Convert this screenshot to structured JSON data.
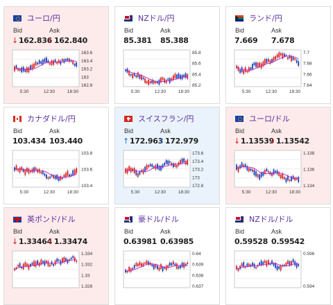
{
  "labels": {
    "bid": "Bid",
    "ask": "Ask"
  },
  "cards": [
    {
      "pair": "ユーロ/円",
      "flag": "eu",
      "state": "down",
      "bid": "162.836",
      "ask": "162.840",
      "bid_arrow": "↓",
      "ask_arrow": "↓",
      "y_ticks": [
        "163.6",
        "163.4",
        "163.2",
        "163",
        "162.8"
      ],
      "x_ticks": [
        "5:30",
        "12:30",
        "18:30"
      ]
    },
    {
      "pair": "NZドル/円",
      "flag": "nz",
      "state": "flat",
      "bid": "85.381",
      "ask": "85.388",
      "bid_arrow": "",
      "ask_arrow": "",
      "y_ticks": [
        "85.8",
        "85.6",
        "85.4",
        "85.2"
      ],
      "x_ticks": [
        "5:30",
        "12:30",
        "18:30"
      ]
    },
    {
      "pair": "ランド/円",
      "flag": "za",
      "state": "flat",
      "bid": "7.669",
      "ask": "7.678",
      "bid_arrow": "",
      "ask_arrow": "",
      "y_ticks": [
        "7.7",
        "7.68",
        "7.66",
        "7.64"
      ],
      "x_ticks": [
        "5:30",
        "12:30",
        "18:30"
      ]
    },
    {
      "pair": "カナダドル/円",
      "flag": "ca",
      "state": "flat",
      "bid": "103.434",
      "ask": "103.440",
      "bid_arrow": "",
      "ask_arrow": "",
      "y_ticks": [
        "103.8",
        "103.6",
        "103.4"
      ],
      "x_ticks": [
        "5:30",
        "12:30",
        "18:30"
      ]
    },
    {
      "pair": "スイスフラン/円",
      "flag": "ch",
      "state": "up",
      "bid": "172.963",
      "ask": "172.979",
      "bid_arrow": "↑",
      "ask_arrow": "↑",
      "y_ticks": [
        "173.6",
        "173.4",
        "173.2",
        "173",
        "172.8"
      ],
      "x_ticks": [
        "5:30",
        "12:30",
        "18:30"
      ]
    },
    {
      "pair": "ユーロ/ドル",
      "flag": "eu",
      "state": "down",
      "bid": "1.13539",
      "ask": "1.13542",
      "bid_arrow": "↓",
      "ask_arrow": "↓",
      "y_ticks": [
        "1.138",
        "1.136",
        "1.134"
      ],
      "x_ticks": [
        "5:30",
        "12:30",
        "18:30"
      ]
    },
    {
      "pair": "英ポンド/ドル",
      "flag": "gb",
      "state": "down",
      "bid": "1.33464",
      "ask": "1.33474",
      "bid_arrow": "↓",
      "ask_arrow": "↓",
      "y_ticks": [
        "1.334",
        "1.332",
        "1.33",
        "1.328"
      ],
      "x_ticks": []
    },
    {
      "pair": "豪ドル/ドル",
      "flag": "au",
      "state": "flat",
      "bid": "0.63981",
      "ask": "0.63985",
      "bid_arrow": "",
      "ask_arrow": "",
      "y_ticks": [
        "0.64",
        "0.639",
        "0.638",
        "0.637"
      ],
      "x_ticks": []
    },
    {
      "pair": "NZドル/ドル",
      "flag": "nz",
      "state": "flat",
      "bid": "0.59528",
      "ask": "0.59542",
      "bid_arrow": "",
      "ask_arrow": "",
      "y_ticks": [
        "0.596",
        "0.594"
      ],
      "x_ticks": []
    }
  ]
}
